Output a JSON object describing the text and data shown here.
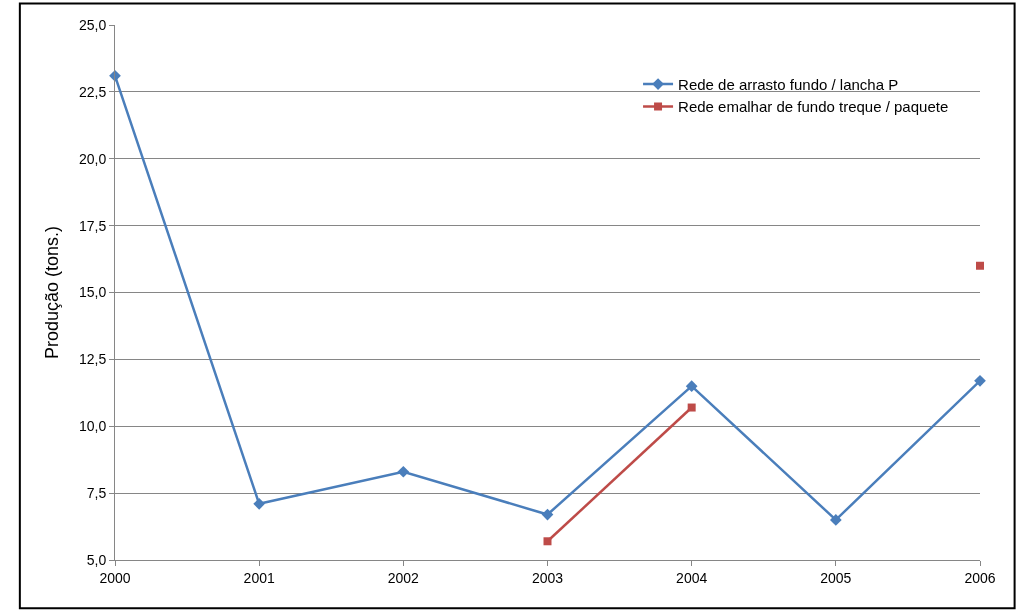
{
  "chart_data": {
    "type": "line",
    "ylabel": "Produção (tons.)",
    "categories": [
      "2000",
      "2001",
      "2002",
      "2003",
      "2004",
      "2005",
      "2006"
    ],
    "series": [
      {
        "name": "Rede de arrasto fundo / lancha P",
        "color": "#4a7ebb",
        "marker": "diamond",
        "values": [
          23.1,
          7.1,
          8.3,
          6.7,
          11.5,
          6.5,
          11.7
        ]
      },
      {
        "name": "Rede emalhar de fundo treque / paquete",
        "color": "#be4b48",
        "marker": "square",
        "values": [
          null,
          null,
          null,
          5.7,
          10.7,
          null,
          16.0
        ]
      }
    ],
    "ylim": [
      5,
      25
    ],
    "yticks": [
      {
        "value": 5,
        "label": "5,0"
      },
      {
        "value": 7.5,
        "label": "7,5"
      },
      {
        "value": 10,
        "label": "10,0"
      },
      {
        "value": 12.5,
        "label": "12,5"
      },
      {
        "value": 15,
        "label": "15,0"
      },
      {
        "value": 17.5,
        "label": "17,5"
      },
      {
        "value": 20,
        "label": "20,0"
      },
      {
        "value": 22.5,
        "label": "22,5"
      },
      {
        "value": 25,
        "label": "25,0"
      }
    ],
    "grid": "y",
    "legend": "top right",
    "line_style": "solid"
  }
}
